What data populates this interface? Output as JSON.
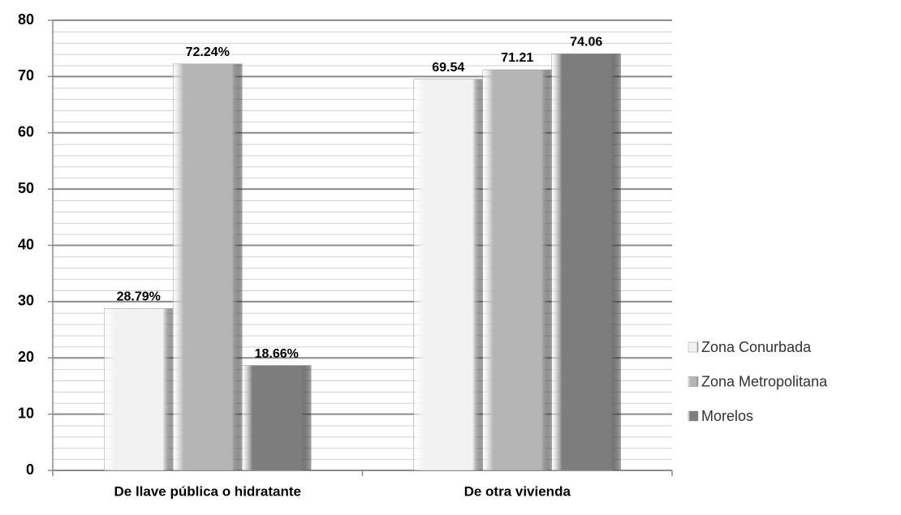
{
  "chart_data": {
    "type": "bar",
    "categories": [
      "De llave pública o hidratante",
      "De otra vivienda"
    ],
    "series": [
      {
        "name": "Zona Conurbada",
        "color": "#f2f2f2",
        "values": [
          28.79,
          69.54
        ],
        "value_labels": [
          "28.79%",
          "69.54"
        ]
      },
      {
        "name": "Zona Metropolitana",
        "color": "#b5b5b5",
        "values": [
          72.24,
          71.21
        ],
        "value_labels": [
          "72.24%",
          "71.21"
        ]
      },
      {
        "name": "Morelos",
        "color": "#7d7d7d",
        "values": [
          18.66,
          74.06
        ],
        "value_labels": [
          "18.66%",
          "74.06"
        ]
      }
    ],
    "ylim": [
      0,
      80
    ],
    "yticks": [
      0,
      10,
      20,
      30,
      40,
      50,
      60,
      70,
      80
    ],
    "grid": true,
    "legend": "right"
  }
}
